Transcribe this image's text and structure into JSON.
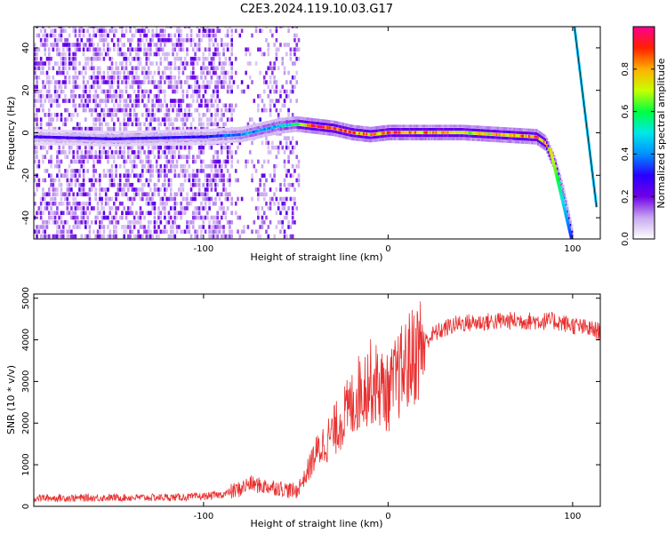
{
  "title": "C2E3.2024.119.10.03.G17",
  "chart_data": [
    {
      "type": "heatmap",
      "xlabel": "Height of straight line (km)",
      "ylabel": "Frequency (Hz)",
      "xlim": [
        -192,
        115
      ],
      "ylim": [
        -50,
        50
      ],
      "xticks": [
        -100,
        0,
        100
      ],
      "yticks": [
        -40,
        -20,
        0,
        20,
        40
      ],
      "colorbar": {
        "label": "Normalized spectral amplitude",
        "range": [
          0,
          1
        ],
        "ticks": [
          0.0,
          0.2,
          0.4,
          0.6,
          0.8
        ],
        "colors": [
          "#ffffff",
          "#c8a8f0",
          "#7000e8",
          "#2800ff",
          "#0090ff",
          "#00e8e8",
          "#00ff40",
          "#c8ff00",
          "#ffb000",
          "#ff2000",
          "#ff0090"
        ]
      },
      "ridge": [
        {
          "x": -192,
          "y": -2,
          "amp": 0.25
        },
        {
          "x": -150,
          "y": -3,
          "amp": 0.28
        },
        {
          "x": -100,
          "y": -2,
          "amp": 0.3
        },
        {
          "x": -80,
          "y": -1,
          "amp": 0.4
        },
        {
          "x": -60,
          "y": 3,
          "amp": 0.45
        },
        {
          "x": -50,
          "y": 4,
          "amp": 0.55
        },
        {
          "x": -40,
          "y": 3,
          "amp": 0.95
        },
        {
          "x": -30,
          "y": 2,
          "amp": 0.9
        },
        {
          "x": -20,
          "y": 0,
          "amp": 0.85
        },
        {
          "x": -10,
          "y": -1,
          "amp": 0.8
        },
        {
          "x": 0,
          "y": 0,
          "amp": 0.85
        },
        {
          "x": 20,
          "y": 0,
          "amp": 0.8
        },
        {
          "x": 40,
          "y": 0,
          "amp": 0.7
        },
        {
          "x": 60,
          "y": -1,
          "amp": 0.75
        },
        {
          "x": 80,
          "y": -2,
          "amp": 0.85
        },
        {
          "x": 85,
          "y": -5,
          "amp": 0.8
        },
        {
          "x": 90,
          "y": -15,
          "amp": 0.7
        },
        {
          "x": 95,
          "y": -30,
          "amp": 0.4
        },
        {
          "x": 100,
          "y": -50,
          "amp": 0.3
        }
      ],
      "alias_line": [
        {
          "x": 101,
          "y": 50
        },
        {
          "x": 113,
          "y": -35
        }
      ]
    },
    {
      "type": "line",
      "xlabel": "Height of straight line (km)",
      "ylabel": "SNR (10 * v/v)",
      "xlim": [
        -192,
        115
      ],
      "ylim": [
        0,
        5100
      ],
      "xticks": [
        -100,
        0,
        100
      ],
      "yticks": [
        0,
        1000,
        2000,
        3000,
        4000,
        5000
      ],
      "color": "#e83030",
      "series": [
        {
          "x": [
            -192,
            -170,
            -150,
            -130,
            -110,
            -100,
            -90,
            -80,
            -75,
            -70,
            -60,
            -55,
            -50,
            -45,
            -40,
            -35,
            -30,
            -25,
            -20,
            -15,
            -10,
            -5,
            0,
            5,
            10,
            15,
            20,
            25,
            30,
            35,
            40,
            50,
            60,
            70,
            80,
            90,
            100,
            110,
            115
          ],
          "y": [
            200,
            200,
            210,
            210,
            220,
            240,
            280,
            420,
            550,
            500,
            450,
            400,
            350,
            700,
            1200,
            1500,
            1750,
            2100,
            2400,
            2800,
            3000,
            2900,
            2700,
            3100,
            3400,
            3700,
            3950,
            4150,
            4250,
            4350,
            4400,
            4420,
            4450,
            4460,
            4450,
            4450,
            4350,
            4250,
            4200
          ]
        }
      ]
    }
  ]
}
